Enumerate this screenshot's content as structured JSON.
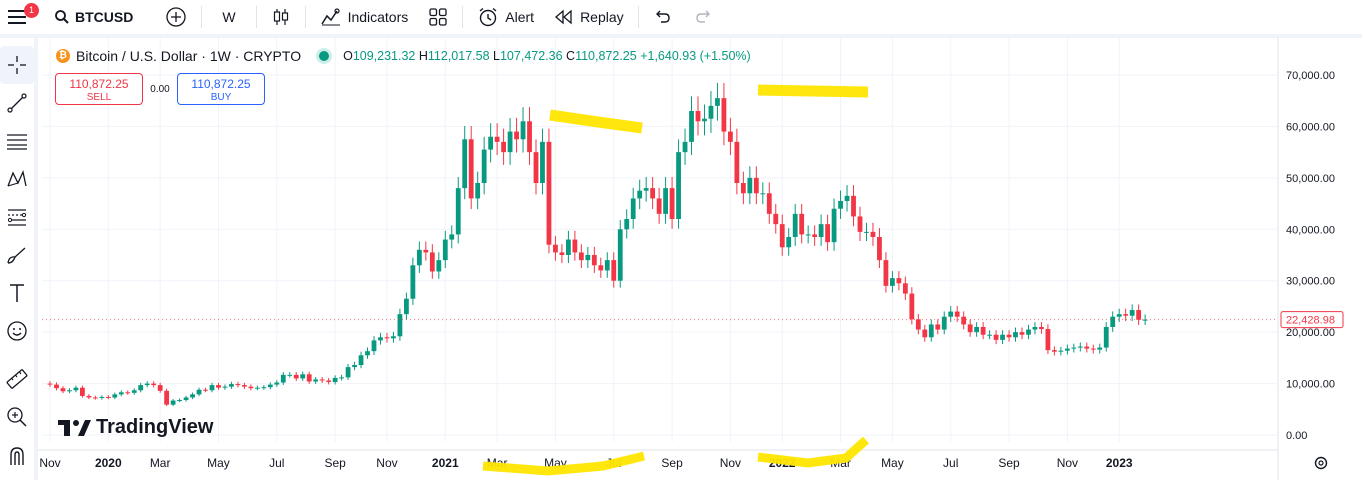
{
  "topbar": {
    "notification_count": "1",
    "symbol": "BTCUSD",
    "interval": "W",
    "indicators_label": "Indicators",
    "alert_label": "Alert",
    "replay_label": "Replay"
  },
  "legend": {
    "title": "Bitcoin / U.S. Dollar · 1W · CRYPTO",
    "o_label": "O",
    "o_value": "109,231.32",
    "h_label": "H",
    "h_value": "112,017.58",
    "l_label": "L",
    "l_value": "107,472.36",
    "c_label": "C",
    "c_value": "110,872.25",
    "change": "+1,640.93 (+1.50%)"
  },
  "trade": {
    "sell_price": "110,872.25",
    "sell_label": "SELL",
    "spread": "0.00",
    "buy_price": "110,872.25",
    "buy_label": "BUY"
  },
  "watermark": "TradingView",
  "colors": {
    "up": "#089981",
    "down": "#f23645",
    "highlight": "#ffe600",
    "text": "#131722"
  },
  "chart_data": {
    "type": "candlestick",
    "price_label": "22,428.98",
    "ylim": [
      0,
      72000
    ],
    "yticks": [
      {
        "value": 0,
        "label": "0.00"
      },
      {
        "value": 10000,
        "label": "10,000.00"
      },
      {
        "value": 20000,
        "label": "20,000.00"
      },
      {
        "value": 30000,
        "label": "30,000.00"
      },
      {
        "value": 40000,
        "label": "40,000.00"
      },
      {
        "value": 50000,
        "label": "50,000.00"
      },
      {
        "value": 60000,
        "label": "60,000.00"
      },
      {
        "value": 70000,
        "label": "70,000.00"
      }
    ],
    "xticks": [
      {
        "week": 0,
        "label": "Nov",
        "bold": false
      },
      {
        "week": 9,
        "label": "2020",
        "bold": true
      },
      {
        "week": 17,
        "label": "Mar",
        "bold": false
      },
      {
        "week": 26,
        "label": "May",
        "bold": false
      },
      {
        "week": 35,
        "label": "Jul",
        "bold": false
      },
      {
        "week": 44,
        "label": "Sep",
        "bold": false
      },
      {
        "week": 52,
        "label": "Nov",
        "bold": false
      },
      {
        "week": 61,
        "label": "2021",
        "bold": true
      },
      {
        "week": 69,
        "label": "Mar",
        "bold": false
      },
      {
        "week": 78,
        "label": "May",
        "bold": false
      },
      {
        "week": 87,
        "label": "Jul",
        "bold": false
      },
      {
        "week": 96,
        "label": "Sep",
        "bold": false
      },
      {
        "week": 105,
        "label": "Nov",
        "bold": false
      },
      {
        "week": 113,
        "label": "2022",
        "bold": true
      },
      {
        "week": 122,
        "label": "Mar",
        "bold": false
      },
      {
        "week": 130,
        "label": "May",
        "bold": false
      },
      {
        "week": 139,
        "label": "Jul",
        "bold": false
      },
      {
        "week": 148,
        "label": "Sep",
        "bold": false
      },
      {
        "week": 157,
        "label": "Nov",
        "bold": false
      },
      {
        "week": 165,
        "label": "2023",
        "bold": true
      }
    ],
    "closes": [
      9800,
      9100,
      8500,
      8700,
      9200,
      7600,
      7300,
      7200,
      7400,
      7300,
      7900,
      8300,
      8200,
      8700,
      9700,
      10000,
      9700,
      8600,
      5900,
      6700,
      6800,
      7300,
      7900,
      8800,
      8700,
      9700,
      9200,
      9400,
      9900,
      9700,
      9400,
      9100,
      9200,
      9300,
      9800,
      10200,
      11700,
      11700,
      11000,
      11800,
      10400,
      10800,
      10600,
      10300,
      11100,
      11200,
      13200,
      13600,
      15500,
      16300,
      18400,
      19000,
      18800,
      19200,
      23500,
      26500,
      33000,
      36000,
      35500,
      31800,
      34000,
      38000,
      39000,
      48000,
      57500,
      46000,
      49000,
      55500,
      58000,
      57000,
      55000,
      59000,
      57500,
      61000,
      55000,
      49000,
      57000,
      37000,
      35500,
      35000,
      38000,
      35500,
      34000,
      35000,
      33000,
      32000,
      34000,
      30000,
      40000,
      42000,
      46000,
      47500,
      48000,
      46000,
      43000,
      48000,
      42000,
      55000,
      57000,
      63000,
      61000,
      61500,
      64000,
      65500,
      59000,
      57000,
      49000,
      47000,
      50000,
      47000,
      47000,
      43000,
      41000,
      36500,
      38500,
      43000,
      39000,
      39000,
      38500,
      41000,
      37500,
      44000,
      45500,
      46500,
      42500,
      39500,
      39500,
      38500,
      34000,
      29000,
      30500,
      29500,
      27500,
      22500,
      20500,
      19000,
      21500,
      20500,
      23000,
      24000,
      23000,
      21500,
      20000,
      21000,
      19500,
      19500,
      18500,
      19500,
      19000,
      20000,
      19500,
      20500,
      21000,
      20600,
      16500,
      16200,
      16400,
      16800,
      17000,
      17200,
      16800,
      16600,
      17000,
      21000,
      23000,
      23500,
      23200,
      24300,
      22400,
      22428.98
    ]
  }
}
